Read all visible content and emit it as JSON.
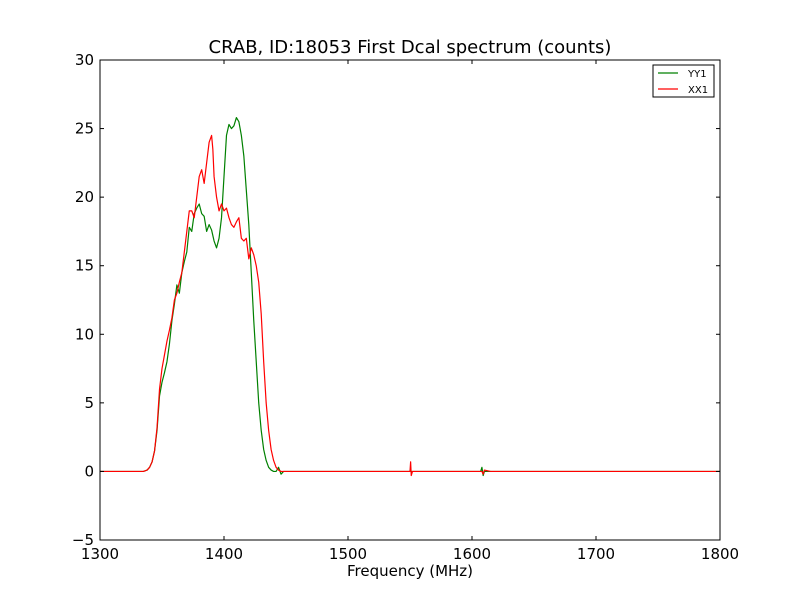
{
  "chart_data": {
    "type": "line",
    "title": "CRAB, ID:18053 First Dcal spectrum (counts)",
    "xlabel": "Frequency (MHz)",
    "ylabel": "",
    "xlim": [
      1300,
      1800
    ],
    "ylim": [
      -5,
      30
    ],
    "xticks": [
      1300,
      1400,
      1500,
      1600,
      1700,
      1800
    ],
    "yticks": [
      -5,
      0,
      5,
      10,
      15,
      20,
      25,
      30
    ],
    "xtick_labels": [
      "1300",
      "1400",
      "1500",
      "1600",
      "1700",
      "1800"
    ],
    "ytick_labels": [
      "−5",
      "0",
      "5",
      "10",
      "15",
      "20",
      "25",
      "30"
    ],
    "grid": false,
    "legend_position": "top-right",
    "series": [
      {
        "name": "YY1",
        "color": "#008000",
        "x": [
          1300,
          1335,
          1338,
          1340,
          1342,
          1344,
          1346,
          1348,
          1350,
          1352,
          1354,
          1356,
          1358,
          1360,
          1362,
          1364,
          1366,
          1368,
          1370,
          1372,
          1374,
          1376,
          1378,
          1380,
          1382,
          1384,
          1386,
          1388,
          1390,
          1392,
          1394,
          1396,
          1398,
          1400,
          1402,
          1404,
          1406,
          1408,
          1410,
          1412,
          1414,
          1416,
          1418,
          1420,
          1422,
          1424,
          1426,
          1428,
          1430,
          1432,
          1434,
          1436,
          1438,
          1440,
          1442,
          1444,
          1446,
          1448,
          1450,
          1452,
          1455,
          1458,
          1462,
          1470,
          1550,
          1550.5,
          1551,
          1600,
          1607,
          1608,
          1609,
          1610,
          1612,
          1615,
          1620,
          1640,
          1660,
          1700,
          1750,
          1800
        ],
        "y": [
          0,
          0,
          0.1,
          0.3,
          0.7,
          1.5,
          3.0,
          5.5,
          6.5,
          7.2,
          8.0,
          9.3,
          11.0,
          12.2,
          13.6,
          13.0,
          14.5,
          15.3,
          16.0,
          17.8,
          17.5,
          18.8,
          19.2,
          19.5,
          18.8,
          18.6,
          17.5,
          18.0,
          17.6,
          16.8,
          16.3,
          17.0,
          18.5,
          21.5,
          24.5,
          25.3,
          25.0,
          25.2,
          25.8,
          25.5,
          24.5,
          23.0,
          20.5,
          18.0,
          14.5,
          11.0,
          8.0,
          5.0,
          3.0,
          1.6,
          0.8,
          0.3,
          0.1,
          0,
          0,
          0.3,
          -0.2,
          0,
          0,
          0,
          0,
          0,
          0,
          0,
          0,
          0,
          0,
          0,
          0,
          0.3,
          -0.3,
          0,
          0,
          0,
          0,
          0,
          0,
          0,
          0,
          0
        ]
      },
      {
        "name": "XX1",
        "color": "#ff0000",
        "x": [
          1300,
          1335,
          1338,
          1340,
          1342,
          1344,
          1346,
          1348,
          1350,
          1352,
          1354,
          1356,
          1358,
          1360,
          1362,
          1364,
          1366,
          1368,
          1370,
          1372,
          1374,
          1376,
          1378,
          1380,
          1382,
          1384,
          1386,
          1388,
          1390,
          1391,
          1392,
          1394,
          1396,
          1398,
          1400,
          1402,
          1404,
          1406,
          1408,
          1410,
          1412,
          1414,
          1416,
          1418,
          1420,
          1422,
          1424,
          1426,
          1428,
          1430,
          1432,
          1434,
          1436,
          1438,
          1440,
          1442,
          1444,
          1446,
          1448,
          1450,
          1452,
          1455,
          1458,
          1462,
          1470,
          1549,
          1550,
          1550.5,
          1551,
          1552,
          1600,
          1608,
          1609,
          1610,
          1615,
          1620,
          1700,
          1800
        ],
        "y": [
          0,
          0,
          0.1,
          0.3,
          0.7,
          1.5,
          3.2,
          6.0,
          7.5,
          8.5,
          9.5,
          10.3,
          11.2,
          12.5,
          13.0,
          13.8,
          14.5,
          16.0,
          17.5,
          19.0,
          19.0,
          18.5,
          20.0,
          21.5,
          22.0,
          21.0,
          22.5,
          24.0,
          24.5,
          23.5,
          21.5,
          20.0,
          19.0,
          19.5,
          19.0,
          19.2,
          18.5,
          18.0,
          17.8,
          18.2,
          18.5,
          17.0,
          16.8,
          17.0,
          15.5,
          16.3,
          15.8,
          15.0,
          13.8,
          11.5,
          8.0,
          5.0,
          3.0,
          1.6,
          0.8,
          0.3,
          0.1,
          0,
          0,
          0,
          0,
          0,
          0,
          0,
          0,
          0,
          0,
          0.7,
          -0.3,
          0,
          0,
          0,
          -0.2,
          0.1,
          0,
          0,
          0,
          0
        ]
      }
    ]
  }
}
